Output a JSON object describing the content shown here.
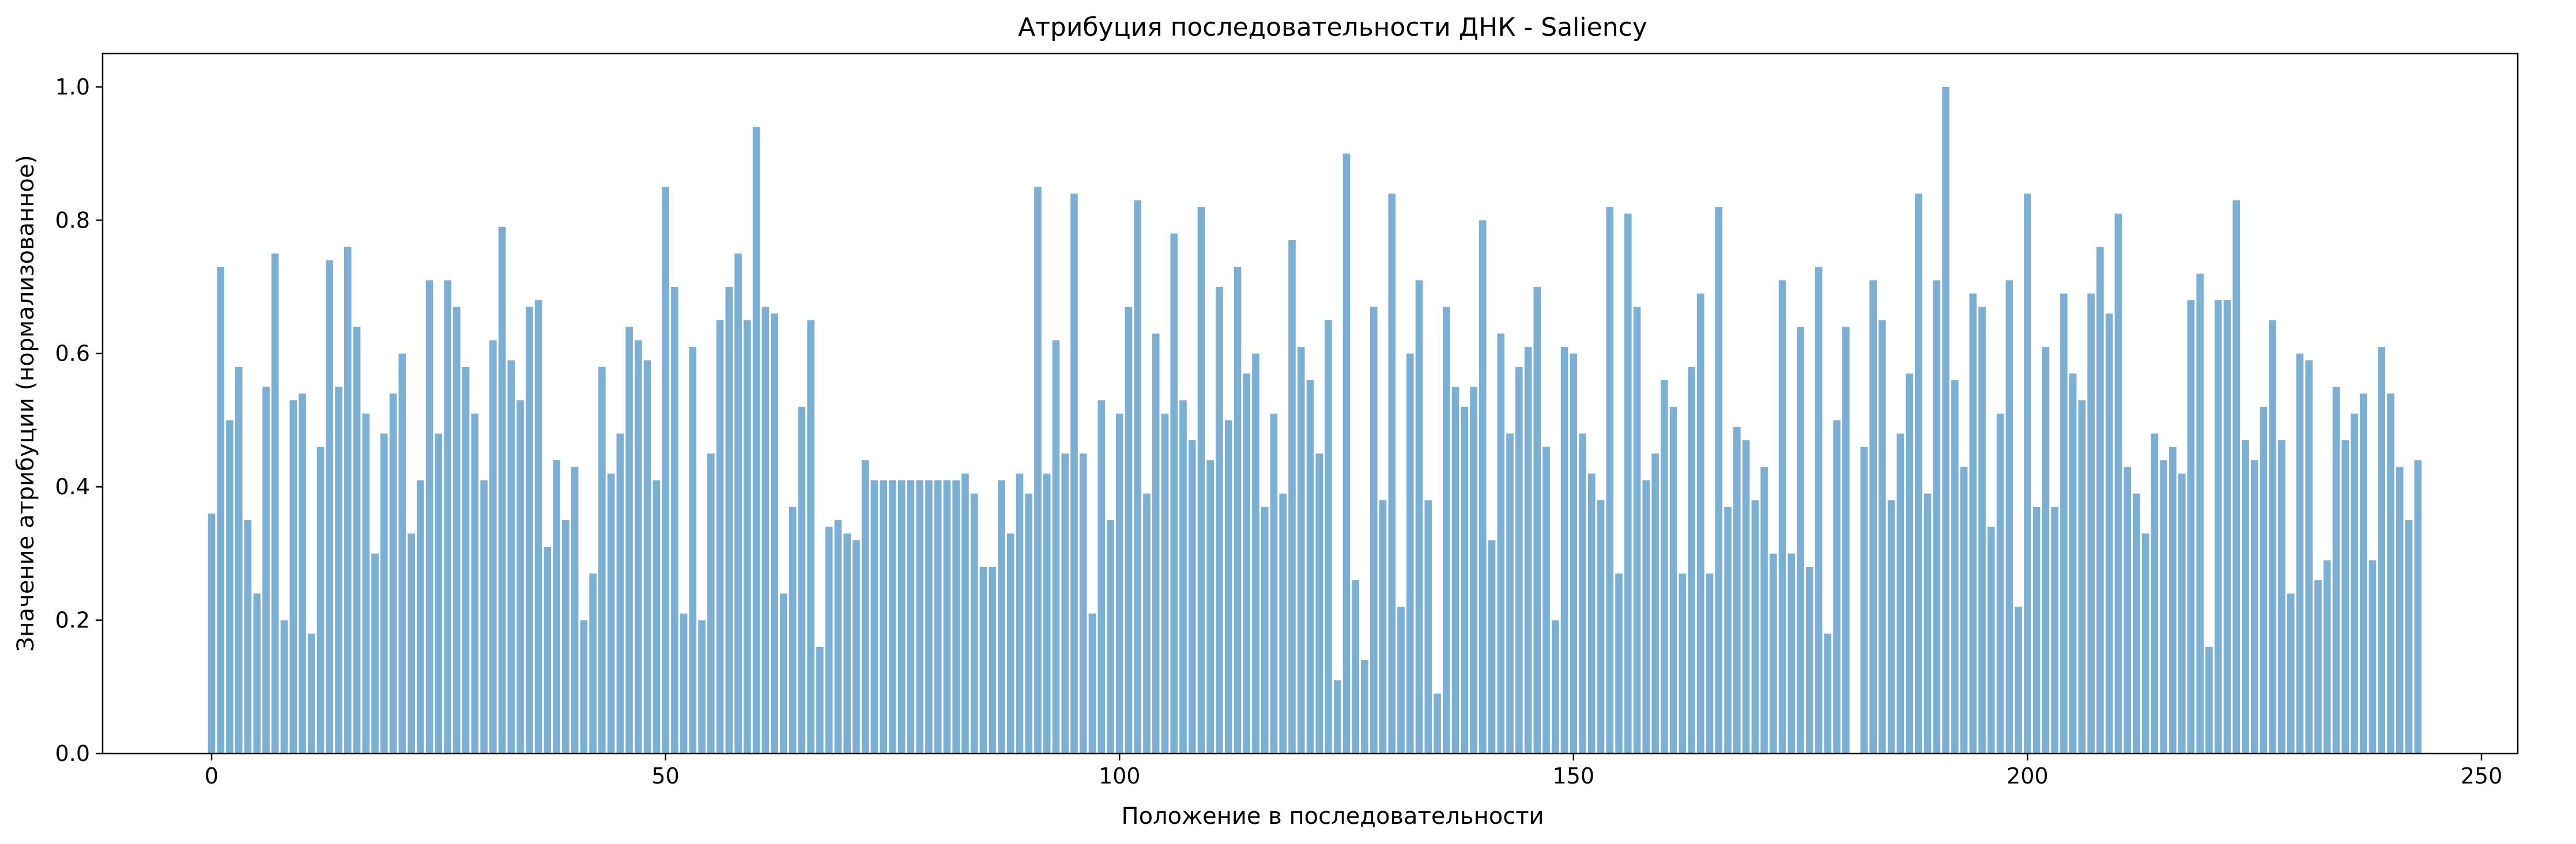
{
  "chart_data": {
    "type": "bar",
    "title": "Атрибуция последовательности ДНК - Saliency",
    "xlabel": "Положение в последовательности",
    "ylabel": "Значение атрибуции (нормализованное)",
    "xlim": [
      -12,
      254
    ],
    "ylim": [
      0,
      1.05
    ],
    "xticks": [
      0,
      50,
      100,
      150,
      200,
      250
    ],
    "yticks": [
      0.0,
      0.2,
      0.4,
      0.6,
      0.8,
      1.0
    ],
    "ytick_labels": [
      "0.0",
      "0.2",
      "0.4",
      "0.6",
      "0.8",
      "1.0"
    ],
    "grid": false,
    "bar_color": "#7bafd4",
    "x": [
      0,
      1,
      2,
      3,
      4,
      5,
      6,
      7,
      8,
      9,
      10,
      11,
      12,
      13,
      14,
      15,
      16,
      17,
      18,
      19,
      20,
      21,
      22,
      23,
      24,
      25,
      26,
      27,
      28,
      29,
      30,
      31,
      32,
      33,
      34,
      35,
      36,
      37,
      38,
      39,
      40,
      41,
      42,
      43,
      44,
      45,
      46,
      47,
      48,
      49,
      50,
      51,
      52,
      53,
      54,
      55,
      56,
      57,
      58,
      59,
      60,
      61,
      62,
      63,
      64,
      65,
      66,
      67,
      68,
      69,
      70,
      71,
      72,
      73,
      74,
      75,
      76,
      77,
      78,
      79,
      80,
      81,
      82,
      83,
      84,
      85,
      86,
      87,
      88,
      89,
      90,
      91,
      92,
      93,
      94,
      95,
      96,
      97,
      98,
      99,
      100,
      101,
      102,
      103,
      104,
      105,
      106,
      107,
      108,
      109,
      110,
      111,
      112,
      113,
      114,
      115,
      116,
      117,
      118,
      119,
      120,
      121,
      122,
      123,
      124,
      125,
      126,
      127,
      128,
      129,
      130,
      131,
      132,
      133,
      134,
      135,
      136,
      137,
      138,
      139,
      140,
      141,
      142,
      143,
      144,
      145,
      146,
      147,
      148,
      149,
      150,
      151,
      152,
      153,
      154,
      155,
      156,
      157,
      158,
      159,
      160,
      161,
      162,
      163,
      164,
      165,
      166,
      167,
      168,
      169,
      170,
      171,
      172,
      173,
      174,
      175,
      176,
      177,
      178,
      179,
      180,
      181,
      182,
      183,
      184,
      185,
      186,
      187,
      188,
      189,
      190,
      191,
      192,
      193,
      194,
      195,
      196,
      197,
      198,
      199,
      200,
      201,
      202,
      203,
      204,
      205,
      206,
      207,
      208,
      209,
      210,
      211,
      212,
      213,
      214,
      215,
      216,
      217,
      218,
      219,
      220,
      221,
      222,
      223,
      224,
      225,
      226,
      227,
      228,
      229,
      230,
      231,
      232,
      233,
      234,
      235,
      236,
      237,
      238,
      239,
      240,
      241,
      242,
      243
    ],
    "values": [
      0.36,
      0.73,
      0.5,
      0.58,
      0.35,
      0.24,
      0.55,
      0.75,
      0.2,
      0.53,
      0.54,
      0.18,
      0.46,
      0.74,
      0.55,
      0.76,
      0.64,
      0.51,
      0.3,
      0.48,
      0.54,
      0.6,
      0.33,
      0.41,
      0.71,
      0.48,
      0.71,
      0.67,
      0.58,
      0.51,
      0.41,
      0.62,
      0.79,
      0.59,
      0.53,
      0.67,
      0.68,
      0.31,
      0.44,
      0.35,
      0.43,
      0.2,
      0.27,
      0.58,
      0.42,
      0.48,
      0.64,
      0.62,
      0.59,
      0.41,
      0.85,
      0.7,
      0.21,
      0.61,
      0.2,
      0.45,
      0.65,
      0.7,
      0.75,
      0.65,
      0.94,
      0.67,
      0.66,
      0.24,
      0.37,
      0.52,
      0.65,
      0.16,
      0.34,
      0.35,
      0.33,
      0.32,
      0.44,
      0.41,
      0.41,
      0.41,
      0.41,
      0.41,
      0.41,
      0.41,
      0.41,
      0.41,
      0.41,
      0.42,
      0.39,
      0.28,
      0.28,
      0.41,
      0.33,
      0.42,
      0.39,
      0.85,
      0.42,
      0.62,
      0.45,
      0.84,
      0.45,
      0.21,
      0.53,
      0.35,
      0.51,
      0.67,
      0.83,
      0.39,
      0.63,
      0.51,
      0.78,
      0.53,
      0.47,
      0.82,
      0.44,
      0.7,
      0.5,
      0.73,
      0.57,
      0.6,
      0.37,
      0.51,
      0.39,
      0.77,
      0.61,
      0.56,
      0.45,
      0.65,
      0.11,
      0.9,
      0.26,
      0.14,
      0.67,
      0.38,
      0.84,
      0.22,
      0.6,
      0.71,
      0.38,
      0.09,
      0.67,
      0.55,
      0.52,
      0.55,
      0.8,
      0.32,
      0.63,
      0.48,
      0.58,
      0.61,
      0.7,
      0.46,
      0.2,
      0.61,
      0.6,
      0.48,
      0.42,
      0.38,
      0.82,
      0.27,
      0.81,
      0.67,
      0.41,
      0.45,
      0.56,
      0.52,
      0.27,
      0.58,
      0.69,
      0.27,
      0.82,
      0.37,
      0.49,
      0.47,
      0.38,
      0.43,
      0.3,
      0.71,
      0.3,
      0.64,
      0.28,
      0.73,
      0.18,
      0.5,
      0.64,
      0.0,
      0.46,
      0.71,
      0.65,
      0.38,
      0.48,
      0.57,
      0.84,
      0.39,
      0.71,
      1.0,
      0.56,
      0.43,
      0.69,
      0.67,
      0.34,
      0.51,
      0.71,
      0.22,
      0.84,
      0.37,
      0.61,
      0.37,
      0.69,
      0.57,
      0.53,
      0.69,
      0.76,
      0.66,
      0.81,
      0.43,
      0.39,
      0.33,
      0.48,
      0.44,
      0.46,
      0.42,
      0.68,
      0.72,
      0.16,
      0.68,
      0.68,
      0.83,
      0.47,
      0.44,
      0.52,
      0.65,
      0.47,
      0.24,
      0.6,
      0.59,
      0.26,
      0.29,
      0.55,
      0.47,
      0.51,
      0.54,
      0.29,
      0.61,
      0.54,
      0.43,
      0.35,
      0.44
    ]
  }
}
